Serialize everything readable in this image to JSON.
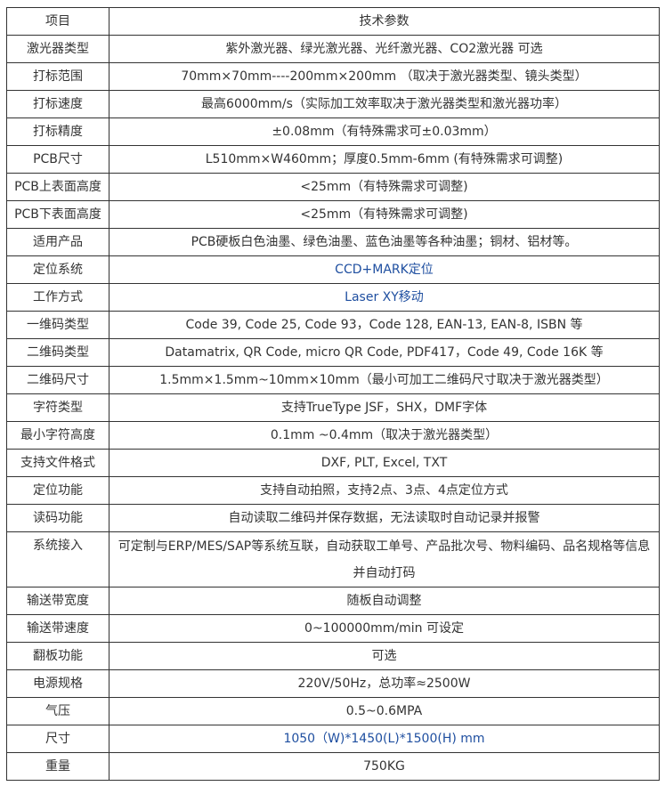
{
  "header": {
    "item": "项目",
    "param": "技术参数"
  },
  "accent_color": "#1f4fa0",
  "rows": [
    {
      "k": "激光器类型",
      "v": "紫外激光器、绿光激光器、光纤激光器、CO2激光器 可选"
    },
    {
      "k": "打标范围",
      "v": "70mm×70mm----200mm×200mm （取决于激光器类型、镜头类型）"
    },
    {
      "k": "打标速度",
      "v": "最高6000mm/s（实际加工效率取决于激光器类型和激光器功率）"
    },
    {
      "k": "打标精度",
      "v": "±0.08mm（有特殊需求可±0.03mm）"
    },
    {
      "k": "PCB尺寸",
      "v": "L510mm×W460mm；厚度0.5mm-6mm (有特殊需求可调整)"
    },
    {
      "k": "PCB上表面高度",
      "v": "<25mm（有特殊需求可调整)"
    },
    {
      "k": "PCB下表面高度",
      "v": "<25mm（有特殊需求可调整)"
    },
    {
      "k": "适用产品",
      "v": "PCB硬板白色油墨、绿色油墨、蓝色油墨等各种油墨；铜材、铝材等。"
    },
    {
      "k": "定位系统",
      "v": "CCD+MARK定位",
      "blue": true
    },
    {
      "k": "工作方式",
      "v": "Laser XY移动",
      "blue": true
    },
    {
      "k": "一维码类型",
      "v": "Code 39, Code 25, Code 93，Code 128, EAN-13, EAN-8, ISBN 等"
    },
    {
      "k": "二维码类型",
      "v": "Datamatrix, QR Code, micro QR Code, PDF417，Code 49, Code 16K 等"
    },
    {
      "k": "二维码尺寸",
      "v": "1.5mm×1.5mm~10mm×10mm（最小可加工二维码尺寸取决于激光器类型）"
    },
    {
      "k": "字符类型",
      "v": "支持TrueType JSF，SHX，DMF字体"
    },
    {
      "k": "最小字符高度",
      "v": "0.1mm ~0.4mm（取决于激光器类型）"
    },
    {
      "k": "支持文件格式",
      "v": "DXF, PLT, Excel, TXT"
    },
    {
      "k": "定位功能",
      "v": "支持自动拍照，支持2点、3点、4点定位方式"
    },
    {
      "k": "读码功能",
      "v": "自动读取二维码并保存数据，无法读取时自动记录并报警"
    },
    {
      "k": "系统接入",
      "v": "可定制与ERP/MES/SAP等系统互联，自动获取工单号、产品批次号、物料编码、品名规格等信息并自动打码",
      "multi": true
    },
    {
      "k": "输送带宽度",
      "v": "随板自动调整"
    },
    {
      "k": "输送带速度",
      "v": "0~100000mm/min 可设定"
    },
    {
      "k": "翻板功能",
      "v": "可选"
    },
    {
      "k": "电源规格",
      "v": "220V/50Hz，总功率≈2500W"
    },
    {
      "k": "气压",
      "v": "0.5~0.6MPA"
    },
    {
      "k": "尺寸",
      "v": "1050（W)*1450(L)*1500(H) mm",
      "blue": true
    },
    {
      "k": "重量",
      "v": "750KG"
    }
  ]
}
